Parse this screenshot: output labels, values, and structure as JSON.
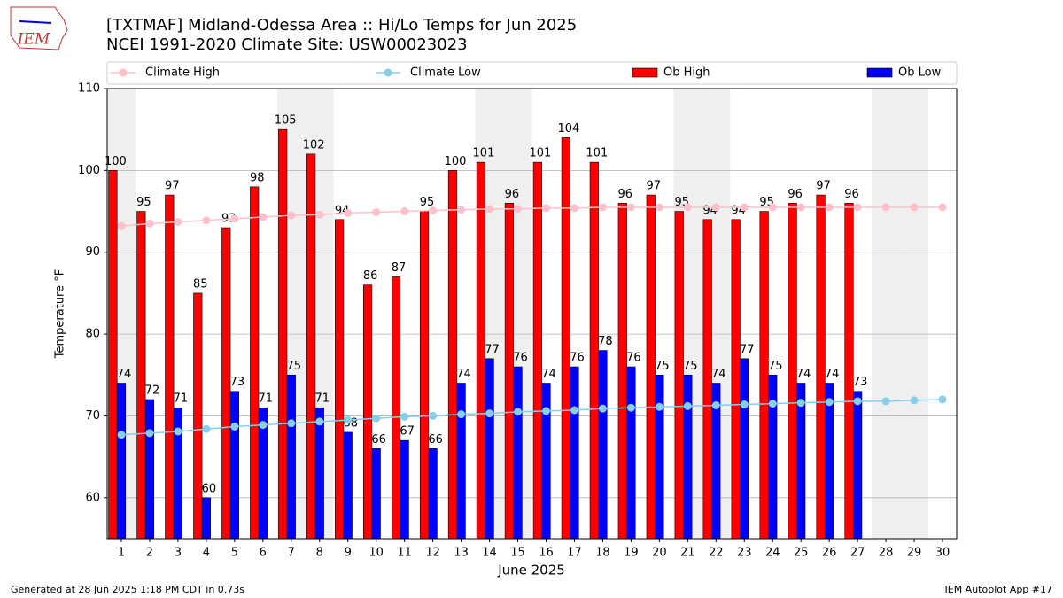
{
  "chart_data": {
    "type": "bar_line",
    "title": "[TXTMAF] Midland-Odessa Area :: Hi/Lo Temps for Jun 2025",
    "subtitle": "NCEI 1991-2020 Climate Site: USW00023023",
    "y_label": "Temperature °F",
    "x_label": "June 2025",
    "x": [
      1,
      2,
      3,
      4,
      5,
      6,
      7,
      8,
      9,
      10,
      11,
      12,
      13,
      14,
      15,
      16,
      17,
      18,
      19,
      20,
      21,
      22,
      23,
      24,
      25,
      26,
      27,
      28,
      29,
      30
    ],
    "xlim": [
      0.5,
      30.5
    ],
    "xticks": [
      1,
      2,
      3,
      4,
      5,
      6,
      7,
      8,
      9,
      10,
      11,
      12,
      13,
      14,
      15,
      16,
      17,
      18,
      19,
      20,
      21,
      22,
      23,
      24,
      25,
      26,
      27,
      28,
      29,
      30
    ],
    "ylim": [
      55,
      110
    ],
    "yticks": [
      60,
      70,
      80,
      90,
      100,
      110
    ],
    "grid": true,
    "shaded_days": [
      1,
      7,
      8,
      14,
      15,
      21,
      22,
      28,
      29
    ],
    "series": [
      {
        "name": "Climate High",
        "kind": "line",
        "color": "#ffc0cb",
        "values": [
          93.2,
          93.5,
          93.7,
          93.9,
          94.1,
          94.3,
          94.5,
          94.6,
          94.8,
          94.9,
          95.0,
          95.1,
          95.2,
          95.3,
          95.3,
          95.4,
          95.4,
          95.5,
          95.5,
          95.5,
          95.5,
          95.5,
          95.5,
          95.5,
          95.5,
          95.5,
          95.5,
          95.5,
          95.5,
          95.5
        ]
      },
      {
        "name": "Climate Low",
        "kind": "line",
        "color": "#87ceeb",
        "values": [
          67.7,
          67.9,
          68.1,
          68.4,
          68.7,
          68.9,
          69.1,
          69.3,
          69.5,
          69.7,
          69.9,
          70.0,
          70.2,
          70.3,
          70.5,
          70.6,
          70.7,
          70.9,
          71.0,
          71.1,
          71.2,
          71.3,
          71.4,
          71.5,
          71.6,
          71.7,
          71.8,
          71.8,
          71.9,
          72.0
        ]
      },
      {
        "name": "Ob High",
        "kind": "bar",
        "color": "#ff0000",
        "values": [
          100,
          95,
          97,
          85,
          93,
          98,
          105,
          102,
          94,
          86,
          87,
          95,
          100,
          101,
          96,
          101,
          104,
          101,
          96,
          97,
          95,
          94,
          94,
          95,
          96,
          97,
          96,
          null,
          null,
          null
        ]
      },
      {
        "name": "Ob Low",
        "kind": "bar",
        "color": "#0000ff",
        "values": [
          74,
          72,
          71,
          60,
          73,
          71,
          75,
          71,
          68,
          66,
          67,
          66,
          74,
          77,
          76,
          74,
          76,
          78,
          76,
          75,
          75,
          74,
          77,
          75,
          74,
          74,
          73,
          null,
          null,
          null
        ]
      }
    ],
    "logo_text": "IEM",
    "footer_left": "Generated at 28 Jun 2025 1:18 PM CDT in 0.73s",
    "footer_right": "IEM Autoplot App #17"
  }
}
